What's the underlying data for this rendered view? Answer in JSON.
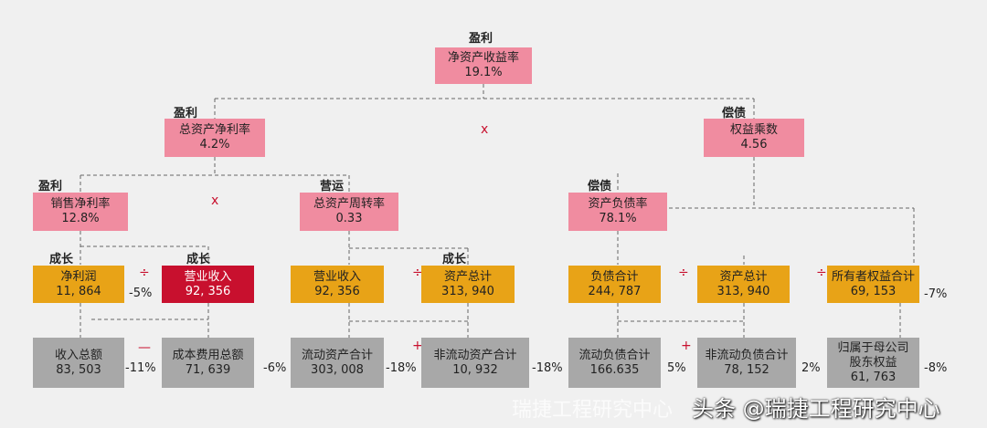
{
  "colors": {
    "pink": "#f08ca0",
    "orange": "#e8a317",
    "red": "#c8102e",
    "gray": "#a8a8a8",
    "background": "#f0f0f0"
  },
  "roe": {
    "tag": "盈利",
    "name": "净资产收益率",
    "value": "19.1%"
  },
  "roa": {
    "tag": "盈利",
    "name": "总资产净利率",
    "value": "4.2%"
  },
  "em": {
    "tag": "偿债",
    "name": "权益乘数",
    "value": "4.56"
  },
  "npm": {
    "tag": "盈利",
    "name": "销售净利率",
    "value": "12.8%"
  },
  "at": {
    "tag": "营运",
    "name": "总资产周转率",
    "value": "0.33"
  },
  "dr": {
    "tag": "偿债",
    "name": "资产负债率",
    "value": "78.1%"
  },
  "l4": [
    {
      "tag": "成长",
      "name": "净利润",
      "value": "11, 864",
      "pct": "-5%"
    },
    {
      "tag": "成长",
      "name": "营业收入",
      "value": "92, 356"
    },
    {
      "name": "营业收入",
      "value": "92, 356"
    },
    {
      "tag": "成长",
      "name": "资产总计",
      "value": "313, 940"
    },
    {
      "name": "负债合计",
      "value": "244, 787"
    },
    {
      "name": "资产总计",
      "value": "313, 940"
    },
    {
      "name": "所有者权益合计",
      "value": "69, 153",
      "pct": "-7%"
    }
  ],
  "l5": [
    {
      "name": "收入总额",
      "value": "83, 503",
      "pct": "-11%"
    },
    {
      "name": "成本费用总额",
      "value": "71, 639",
      "pct": "-6%"
    },
    {
      "name": "流动资产合计",
      "value": "303, 008",
      "pct": "-18%"
    },
    {
      "name": "非流动资产合计",
      "value": "10, 932",
      "pct": "-18%"
    },
    {
      "name": "流动负债合计",
      "value": "166.635",
      "pct": "5%"
    },
    {
      "name": "非流动负债合计",
      "value": "78, 152",
      "pct": "2%"
    },
    {
      "name": "归属于母公司\n股东权益",
      "value": "61, 763",
      "pct": "-8%"
    }
  ],
  "ops": {
    "times": "x",
    "divide": "÷",
    "minus": "—",
    "plus": "+"
  },
  "watermark": {
    "main": "头条 @瑞捷工程研究中心",
    "overlay": "瑞捷工程研究中心"
  }
}
